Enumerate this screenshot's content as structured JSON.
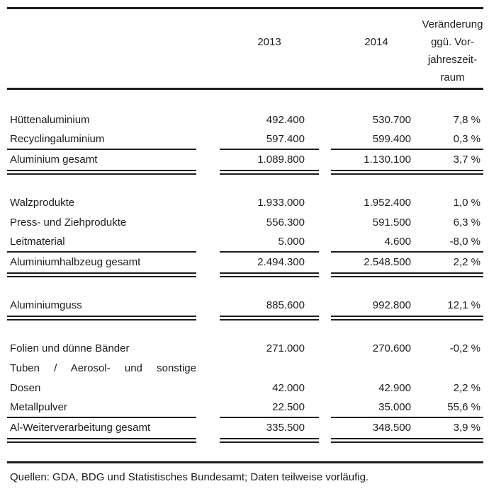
{
  "table": {
    "header": {
      "year1": "2013",
      "year2": "2014",
      "change_lines": [
        "Veränderung",
        "ggü. Vor-",
        "jahreszeit-",
        "raum"
      ]
    },
    "rows": [
      {
        "label": "Hüttenaluminium",
        "y2013": "492.400",
        "y2014": "530.700",
        "change": "7,8 %"
      },
      {
        "label": "Recyclingaluminium",
        "y2013": "597.400",
        "y2014": "599.400",
        "change": "0,3 %"
      },
      {
        "label": "Aluminium gesamt",
        "y2013": "1.089.800",
        "y2014": "1.130.100",
        "change": "3,7 %"
      },
      {
        "label": "Walzprodukte",
        "y2013": "1.933.000",
        "y2014": "1.952.400",
        "change": "1,0 %"
      },
      {
        "label": "Press- und Ziehprodukte",
        "y2013": "556.300",
        "y2014": "591.500",
        "change": "6,3 %"
      },
      {
        "label": "Leitmaterial",
        "y2013": "5.000",
        "y2014": "4.600",
        "change": "-8,0 %"
      },
      {
        "label": "Aluminiumhalbzeug gesamt",
        "y2013": "2.494.300",
        "y2014": "2.548.500",
        "change": "2,2 %"
      },
      {
        "label": "Aluminiumguss",
        "y2013": "885.600",
        "y2014": "992.800",
        "change": "12,1 %"
      },
      {
        "label": "Folien und dünne Bänder",
        "y2013": "271.000",
        "y2014": "270.600",
        "change": "-0,2 %"
      },
      {
        "label": "Tuben / Aerosol- und sonstige",
        "y2013": "",
        "y2014": "",
        "change": ""
      },
      {
        "label": "Dosen",
        "y2013": "42.000",
        "y2014": "42.900",
        "change": "2,2 %"
      },
      {
        "label": "Metallpulver",
        "y2013": "22.500",
        "y2014": "35.000",
        "change": "55,6 %"
      },
      {
        "label": "Al-Weiterverarbeitung gesamt",
        "y2013": "335.500",
        "y2014": "348.500",
        "change": "3,9 %"
      }
    ]
  },
  "footer": {
    "source_note": "Quellen: GDA, BDG und Statistisches Bundesamt; Daten teilweise vorläufig."
  }
}
